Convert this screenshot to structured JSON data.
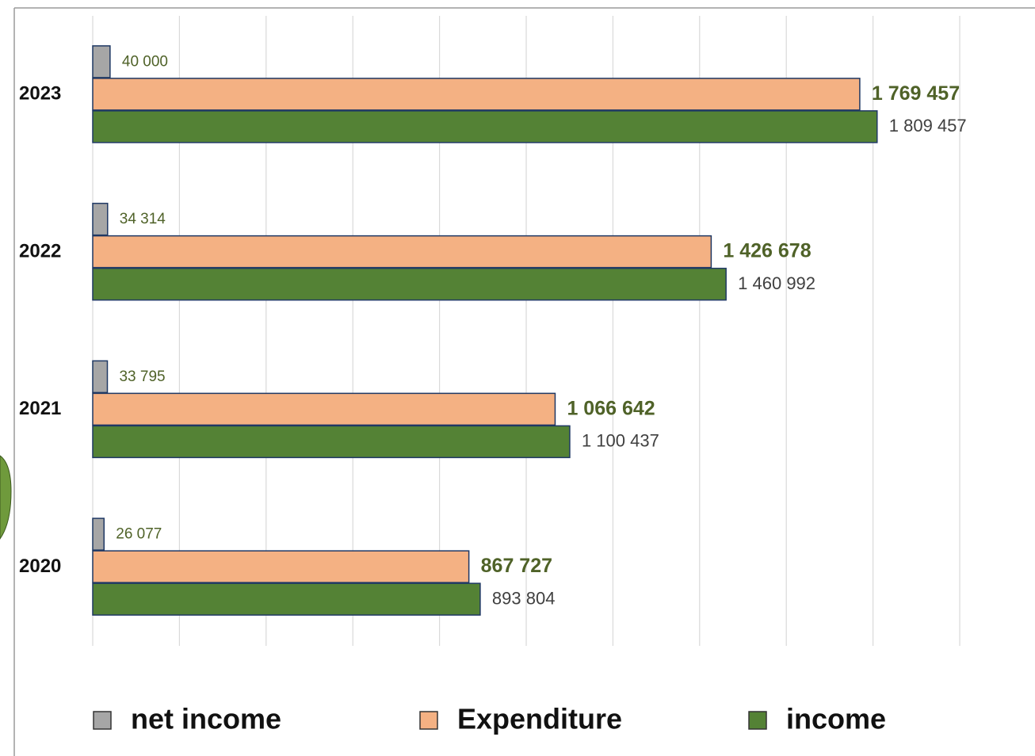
{
  "chart_data": {
    "type": "hbar",
    "categories": [
      "2020",
      "2021",
      "2022",
      "2023"
    ],
    "series": [
      {
        "name": "net income",
        "color": "#a6a6a6",
        "values": [
          26077,
          33795,
          34314,
          40000
        ],
        "value_labels": [
          "26 077",
          "33 795",
          "34 314",
          "40 000"
        ]
      },
      {
        "name": "Expenditure",
        "color": "#f4b183",
        "values": [
          867727,
          1066642,
          1426678,
          1769457
        ],
        "value_labels": [
          "867 727",
          "1 066 642",
          "1 426 678",
          "1 769 457"
        ]
      },
      {
        "name": "income",
        "color": "#548235",
        "values": [
          893804,
          1100437,
          1460992,
          1809457
        ],
        "value_labels": [
          "893 804",
          "1 100 437",
          "1 460 992",
          "1 809 457"
        ]
      }
    ],
    "xlim": [
      0,
      2000000
    ],
    "xticks": [
      0,
      200000,
      400000,
      600000,
      800000,
      1000000,
      1200000,
      1400000,
      1600000,
      1800000,
      2000000
    ],
    "grid": true,
    "legend": "bottom"
  }
}
